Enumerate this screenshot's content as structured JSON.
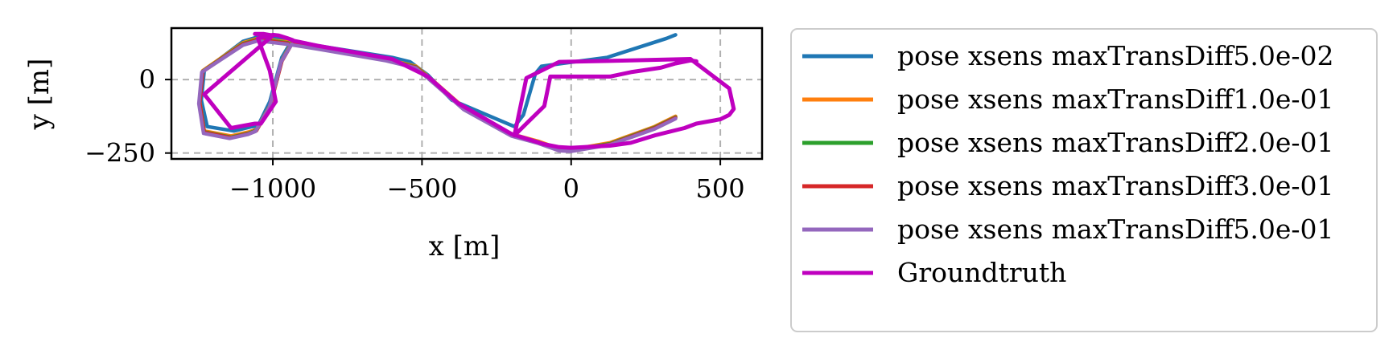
{
  "chart_data": {
    "type": "line",
    "title": "",
    "xlabel": "x [m]",
    "ylabel": "y [m]",
    "xlim": [
      -1340,
      640
    ],
    "ylim": [
      -270,
      175
    ],
    "xticks": [
      -1000,
      -500,
      0,
      500
    ],
    "xtick_labels": [
      "−1000",
      "−500",
      "0",
      "500"
    ],
    "yticks": [
      -250,
      0
    ],
    "ytick_labels": [
      "−250",
      "0"
    ],
    "grid": true,
    "legend_position": "outside-right",
    "series": [
      {
        "name": "pose xsens maxTransDiff5.0e-02",
        "color": "#1f77b4",
        "x": [
          -950,
          -1050,
          -1100,
          -1230,
          -1240,
          -1220,
          -1130,
          -1070,
          -1050,
          -1010,
          -970,
          -935,
          -930,
          -850,
          -600,
          -540,
          -480,
          -400,
          -190,
          -160,
          -120,
          -100,
          -30,
          120,
          320,
          350
        ],
        "y": [
          135,
          145,
          130,
          30,
          -70,
          -160,
          -175,
          -160,
          -158,
          -75,
          75,
          135,
          132,
          115,
          75,
          60,
          15,
          -70,
          -160,
          -120,
          20,
          45,
          55,
          75,
          140,
          152
        ]
      },
      {
        "name": "pose xsens maxTransDiff1.0e-01",
        "color": "#ff7f0e",
        "x": [
          -950,
          -1050,
          -1100,
          -1235,
          -1245,
          -1230,
          -1140,
          -1080,
          -1055,
          -1010,
          -970,
          -935,
          -930,
          -850,
          -620,
          -520,
          -450,
          -360,
          -200,
          -110,
          -40,
          0,
          130,
          280,
          350
        ],
        "y": [
          128,
          140,
          125,
          30,
          -75,
          -175,
          -192,
          -178,
          -170,
          -90,
          65,
          128,
          125,
          110,
          70,
          45,
          -15,
          -95,
          -185,
          -210,
          -235,
          -238,
          -215,
          -160,
          -125
        ]
      },
      {
        "name": "pose xsens maxTransDiff2.0e-01",
        "color": "#2ca02c",
        "x": [
          -950,
          -1050,
          -1100,
          -1235,
          -1245,
          -1230,
          -1140,
          -1080,
          -1055,
          -1010,
          -970,
          -935,
          -930,
          -850,
          -620,
          -520,
          -450,
          -360,
          -200,
          -110,
          -40,
          0,
          130,
          280,
          350
        ],
        "y": [
          125,
          137,
          122,
          28,
          -78,
          -178,
          -196,
          -182,
          -172,
          -92,
          63,
          125,
          122,
          108,
          68,
          43,
          -18,
          -98,
          -188,
          -213,
          -238,
          -240,
          -218,
          -163,
          -128
        ]
      },
      {
        "name": "pose xsens maxTransDiff3.0e-01",
        "color": "#d62728",
        "x": [
          -950,
          -1050,
          -1100,
          -1235,
          -1245,
          -1230,
          -1140,
          -1080,
          -1055,
          -1010,
          -970,
          -935,
          -930,
          -850,
          -620,
          -520,
          -450,
          -360,
          -200,
          -110,
          -40,
          0,
          130,
          280,
          350
        ],
        "y": [
          123,
          135,
          120,
          27,
          -80,
          -180,
          -198,
          -184,
          -174,
          -94,
          62,
          123,
          120,
          106,
          66,
          41,
          -20,
          -100,
          -190,
          -215,
          -240,
          -242,
          -220,
          -165,
          -130
        ]
      },
      {
        "name": "pose xsens maxTransDiff5.0e-01",
        "color": "#9467bd",
        "x": [
          -950,
          -1050,
          -1100,
          -1238,
          -1248,
          -1232,
          -1145,
          -1085,
          -1058,
          -1012,
          -972,
          -937,
          -932,
          -850,
          -620,
          -520,
          -450,
          -360,
          -200,
          -110,
          -40,
          0,
          130,
          280,
          350
        ],
        "y": [
          120,
          132,
          117,
          25,
          -82,
          -183,
          -200,
          -187,
          -176,
          -96,
          60,
          120,
          117,
          104,
          64,
          39,
          -22,
          -102,
          -192,
          -217,
          -242,
          -244,
          -222,
          -168,
          -133
        ]
      },
      {
        "name": "Groundtruth",
        "color": "#bf00bf",
        "x": [
          -1060,
          -1030,
          -1000,
          -1230,
          -1140,
          -1060,
          -1040,
          -990,
          -1010,
          -1050,
          -1000,
          -980,
          -950,
          -935,
          -930,
          -850,
          -600,
          -480,
          -380,
          -200,
          -90,
          -40,
          0,
          130,
          200,
          280,
          380,
          420,
          500,
          530,
          545,
          530,
          400,
          200,
          -40,
          -150,
          -190,
          -150,
          -90,
          -70,
          0,
          130,
          200,
          300,
          350,
          400,
          420
        ],
        "y": [
          155,
          155,
          150,
          -50,
          -165,
          -150,
          -150,
          -75,
          30,
          140,
          152,
          150,
          140,
          135,
          132,
          115,
          70,
          10,
          -80,
          -185,
          -220,
          -230,
          -232,
          -225,
          -215,
          -190,
          -165,
          -150,
          -135,
          -120,
          -100,
          -30,
          70,
          65,
          60,
          5,
          -190,
          -150,
          -90,
          10,
          10,
          10,
          25,
          40,
          55,
          65,
          62
        ]
      }
    ]
  }
}
